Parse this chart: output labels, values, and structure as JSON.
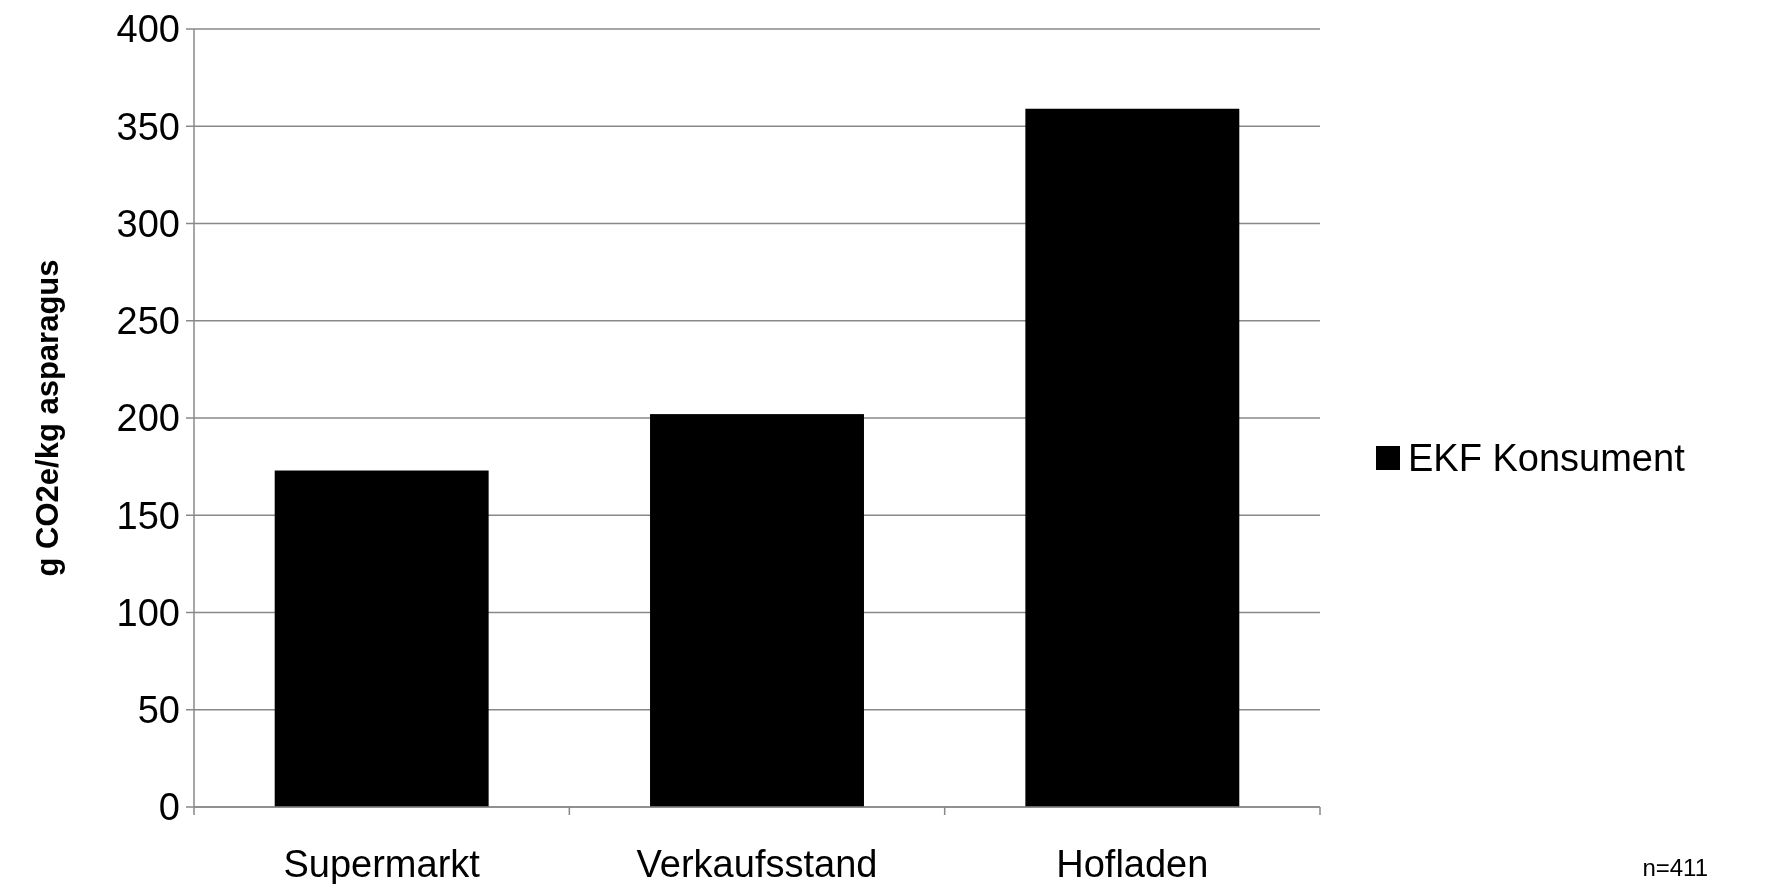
{
  "chart_data": {
    "type": "bar",
    "ylabel": "g CO2e/kg asparagus",
    "categories": [
      "Supermarkt",
      "Verkaufsstand",
      "Hofladen"
    ],
    "series": [
      {
        "name": "EKF Konsument",
        "color": "#000000",
        "values": [
          173,
          202,
          359
        ]
      }
    ],
    "ylim": [
      0,
      400
    ],
    "yticks": [
      0,
      50,
      100,
      150,
      200,
      250,
      300,
      350,
      400
    ],
    "grid": "y",
    "legend": "right",
    "annotations": [
      "n=411"
    ]
  }
}
